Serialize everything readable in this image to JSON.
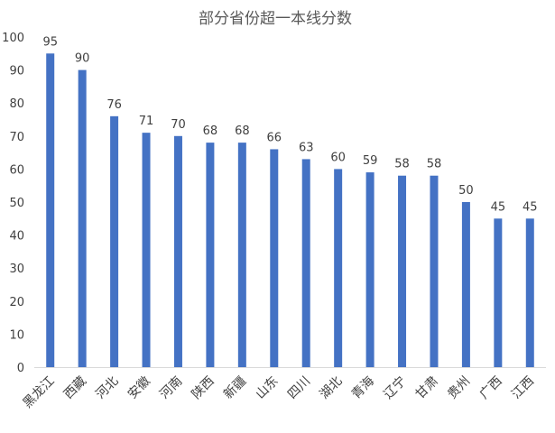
{
  "chart_data": {
    "type": "bar",
    "title": "部分省份超一本线分数",
    "xlabel": "",
    "ylabel": "",
    "categories": [
      "黑龙江",
      "西藏",
      "河北",
      "安徽",
      "河南",
      "陕西",
      "新疆",
      "山东",
      "四川",
      "湖北",
      "青海",
      "辽宁",
      "甘肃",
      "贵州",
      "广西",
      "江西"
    ],
    "values": [
      95,
      90,
      76,
      71,
      70,
      68,
      68,
      66,
      63,
      60,
      59,
      58,
      58,
      50,
      45,
      45
    ],
    "ylim": [
      0,
      100
    ],
    "yticks": [
      0,
      10,
      20,
      30,
      40,
      50,
      60,
      70,
      80,
      90,
      100
    ],
    "bar_color": "#4472C4",
    "grid": false,
    "legend": "none",
    "data_labels": true
  }
}
